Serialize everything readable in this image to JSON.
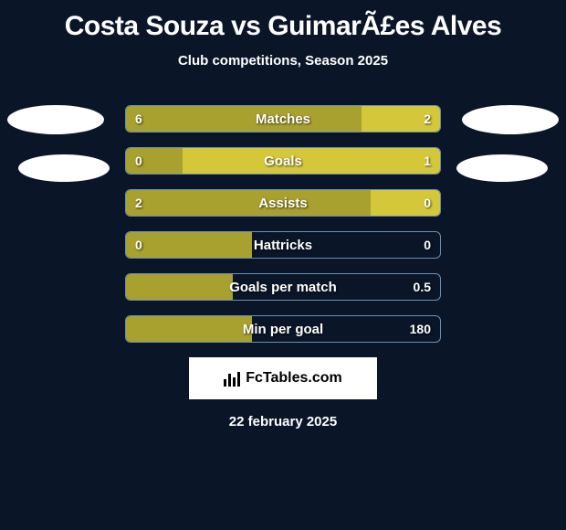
{
  "title": "Costa Souza vs GuimarÃ£es Alves",
  "subtitle": "Club competitions, Season 2025",
  "brand": "FcTables.com",
  "date": "22 february 2025",
  "colors": {
    "background": "#0a1628",
    "bar_border": "#6a8fb5",
    "fill_olive": "#a8a02f",
    "fill_yellow": "#d4c83a",
    "text": "#ffffff"
  },
  "stats": [
    {
      "label": "Matches",
      "left_val": "6",
      "right_val": "2",
      "left_pct": 75,
      "right_pct": 25,
      "left_color": "#a8a02f",
      "right_color": "#d4c83a"
    },
    {
      "label": "Goals",
      "left_val": "0",
      "right_val": "1",
      "left_pct": 18,
      "right_pct": 82,
      "left_color": "#a8a02f",
      "right_color": "#d4c83a"
    },
    {
      "label": "Assists",
      "left_val": "2",
      "right_val": "0",
      "left_pct": 78,
      "right_pct": 22,
      "left_color": "#a8a02f",
      "right_color": "#d4c83a"
    },
    {
      "label": "Hattricks",
      "left_val": "0",
      "right_val": "0",
      "left_pct": 40,
      "right_pct": 0,
      "left_color": "#a8a02f",
      "right_color": "#d4c83a"
    },
    {
      "label": "Goals per match",
      "left_val": "",
      "right_val": "0.5",
      "left_pct": 34,
      "right_pct": 0,
      "left_color": "#a8a02f",
      "right_color": "#d4c83a"
    },
    {
      "label": "Min per goal",
      "left_val": "",
      "right_val": "180",
      "left_pct": 40,
      "right_pct": 0,
      "left_color": "#a8a02f",
      "right_color": "#d4c83a"
    }
  ]
}
